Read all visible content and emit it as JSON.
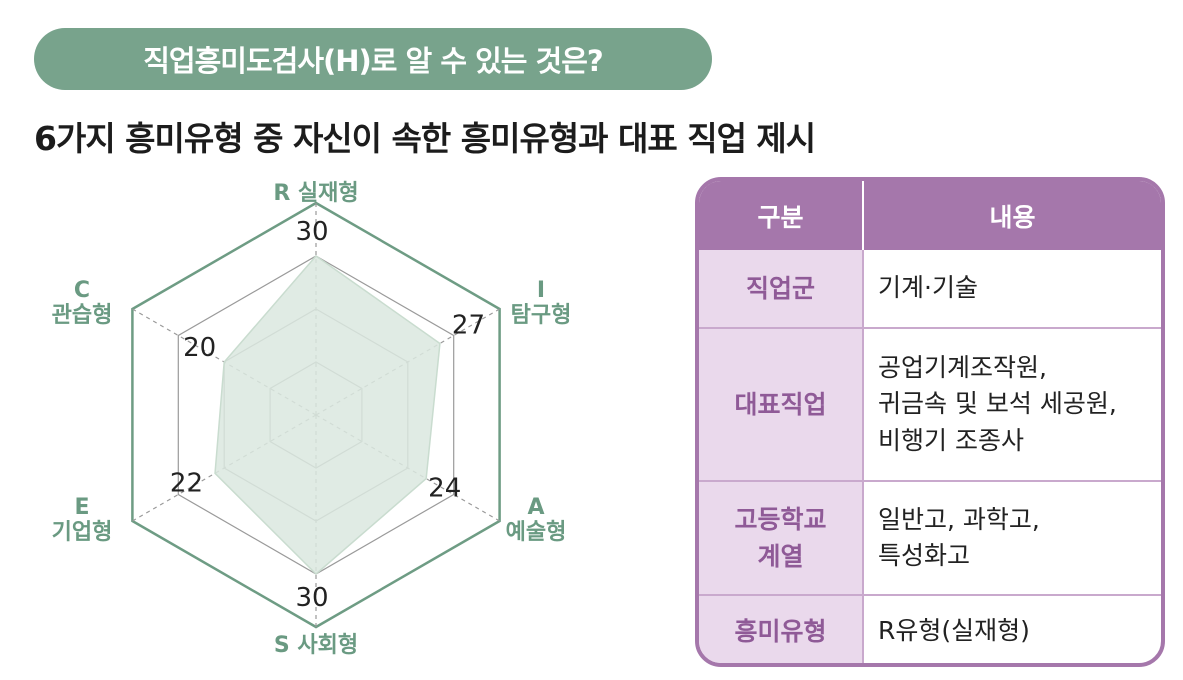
{
  "header": {
    "title": "직업흥미도검사(H)로 알 수 있는 것은?",
    "subtitle": "6가지 흥미유형 중 자신이 속한 흥미유형과 대표 직업 제시"
  },
  "chart_data": {
    "type": "radar",
    "axes": [
      {
        "code": "R",
        "name": "실재형",
        "value": 30
      },
      {
        "code": "I",
        "name": "탐구형",
        "value": 27
      },
      {
        "code": "A",
        "name": "예술형",
        "value": 24
      },
      {
        "code": "S",
        "name": "사회형",
        "value": 30
      },
      {
        "code": "E",
        "name": "기업형",
        "value": 22
      },
      {
        "code": "C",
        "name": "관습형",
        "value": 20
      }
    ],
    "range": [
      0,
      40
    ],
    "rings": 4,
    "colors": {
      "outer": "#6e9c84",
      "grid": "#9a9a9a",
      "fill": "#dbe8df",
      "fill_stroke": "#c9dccf"
    }
  },
  "table": {
    "headers": [
      "구분",
      "내용"
    ],
    "rows": [
      {
        "key": "직업군",
        "value": "기계·기술"
      },
      {
        "key": "대표직업",
        "value": "공업기계조작원,\n귀금속 및 보석 세공원,\n비행기 조종사"
      },
      {
        "key": "고등학교\n계열",
        "value": "일반고, 과학고,\n특성화고"
      },
      {
        "key": "흥미유형",
        "value": "R유형(실재형)"
      }
    ]
  }
}
